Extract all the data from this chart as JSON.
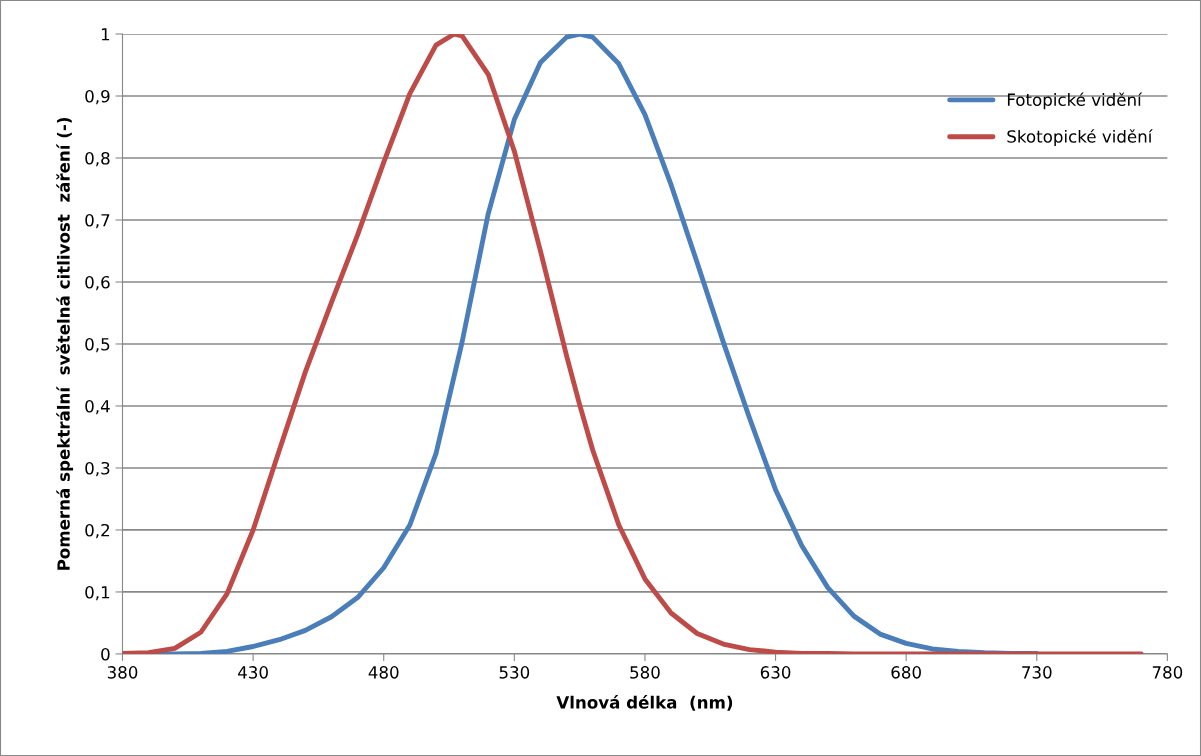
{
  "chart_data": {
    "type": "line",
    "xlabel": "Vlnová délka  (nm)",
    "ylabel": "Pomerná spektrální  světelná citlivost  záření (-)",
    "x": [
      380,
      390,
      400,
      410,
      420,
      430,
      440,
      450,
      460,
      470,
      480,
      490,
      500,
      507,
      510,
      520,
      530,
      540,
      550,
      555,
      560,
      570,
      580,
      590,
      600,
      610,
      620,
      630,
      640,
      650,
      660,
      670,
      680,
      690,
      700,
      710,
      720,
      730,
      740,
      750,
      760,
      770
    ],
    "series": [
      {
        "name": "Fotopické vidění",
        "color": "#4a7ebb",
        "values": [
          0.0,
          0.0,
          0.0,
          0.001,
          0.004,
          0.012,
          0.023,
          0.038,
          0.06,
          0.091,
          0.139,
          0.208,
          0.323,
          0.449,
          0.503,
          0.71,
          0.862,
          0.954,
          0.995,
          1.0,
          0.995,
          0.952,
          0.87,
          0.757,
          0.631,
          0.503,
          0.381,
          0.265,
          0.175,
          0.107,
          0.061,
          0.032,
          0.017,
          0.008,
          0.004,
          0.002,
          0.001,
          0.001,
          null,
          null,
          null,
          null
        ]
      },
      {
        "name": "Skotopické vidění",
        "color": "#be4b48",
        "values": [
          0.001,
          0.002,
          0.009,
          0.035,
          0.097,
          0.2,
          0.328,
          0.455,
          0.567,
          0.676,
          0.793,
          0.904,
          0.982,
          1.0,
          0.997,
          0.935,
          0.811,
          0.65,
          0.481,
          0.402,
          0.329,
          0.208,
          0.121,
          0.066,
          0.033,
          0.016,
          0.007,
          0.003,
          0.001,
          0.001,
          0.0,
          0.0,
          0.0,
          0.0,
          0.0,
          0.0,
          0.0,
          0.0,
          0.0,
          0.0,
          0.0,
          0.0
        ]
      }
    ],
    "xlim": [
      380,
      780
    ],
    "xticks": [
      380,
      430,
      480,
      530,
      580,
      630,
      680,
      730,
      780
    ],
    "ylim": [
      0,
      1
    ],
    "yticks": [
      0,
      {
        "value": 0.1,
        "label": "0,1"
      },
      {
        "value": 0.2,
        "label": "0,2"
      },
      {
        "value": 0.3,
        "label": "0,3"
      },
      {
        "value": 0.4,
        "label": "0,4"
      },
      {
        "value": 0.5,
        "label": "0,5"
      },
      {
        "value": 0.6,
        "label": "0,6"
      },
      {
        "value": 0.7,
        "label": "0,7"
      },
      {
        "value": 0.8,
        "label": "0,8"
      },
      {
        "value": 0.9,
        "label": "0,9"
      },
      1
    ],
    "grid": "y",
    "legend": "top right",
    "marker": "none",
    "line_style": "solid"
  }
}
